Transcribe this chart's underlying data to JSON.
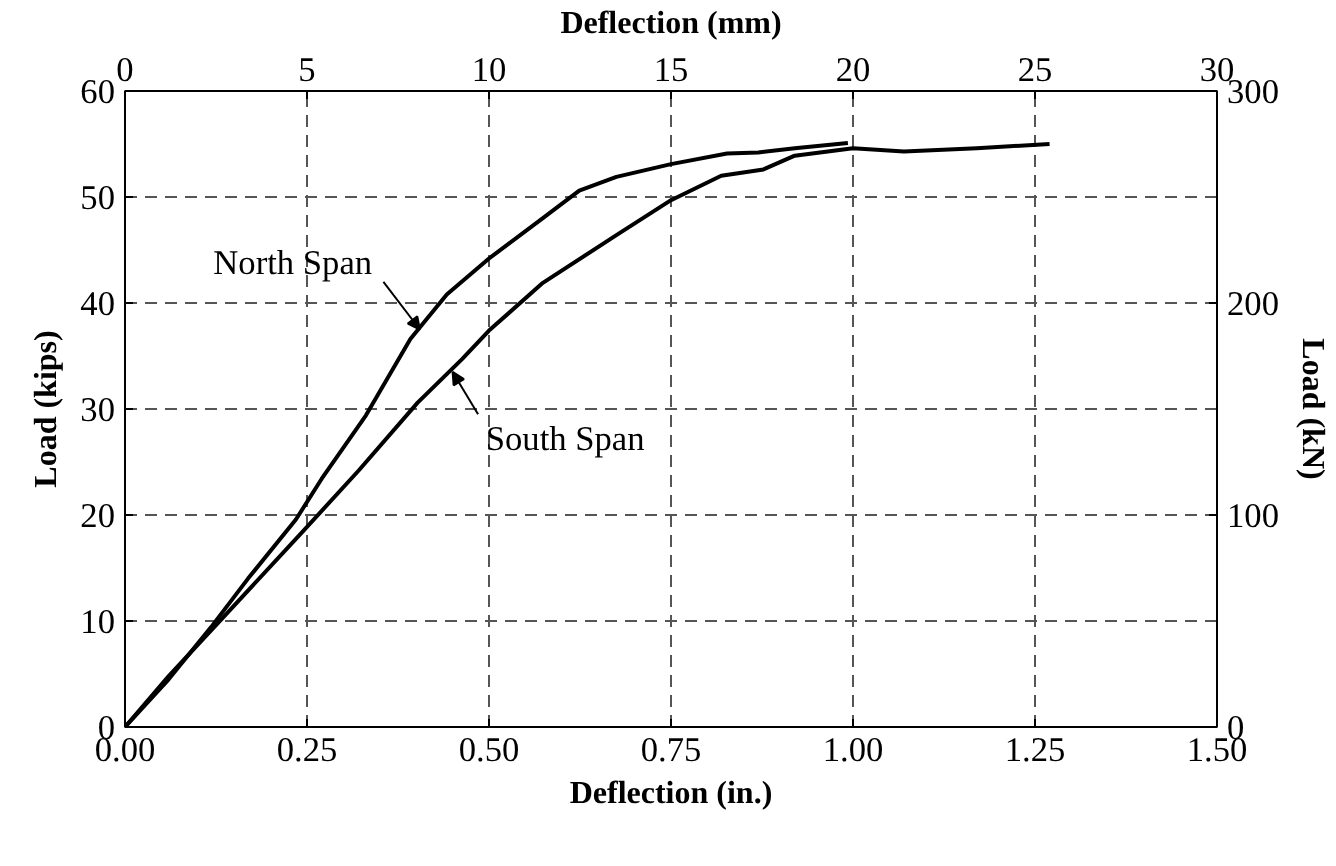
{
  "chart_data": {
    "type": "line",
    "xlabel": "Deflection (in.)",
    "ylabel": "Load (kips)",
    "x2label": "Deflection (mm)",
    "y2label": "Load (kN)",
    "xlim": [
      0,
      1.5
    ],
    "xticks": [
      {
        "value": 0,
        "label": "0.00"
      },
      {
        "value": 0.25,
        "label": "0.25"
      },
      {
        "value": 0.5,
        "label": "0.50"
      },
      {
        "value": 0.75,
        "label": "0.75"
      },
      {
        "value": 1,
        "label": "1.00"
      },
      {
        "value": 1.25,
        "label": "1.25"
      },
      {
        "value": 1.5,
        "label": "1.50"
      }
    ],
    "ylim": [
      0,
      60
    ],
    "yticks": [
      0,
      10,
      20,
      30,
      40,
      50,
      60
    ],
    "x2lim": [
      0,
      30
    ],
    "x2ticks": [
      0,
      5,
      10,
      15,
      20,
      25,
      30
    ],
    "y2lim": [
      0,
      300
    ],
    "y2ticks": [
      0,
      100,
      200,
      300
    ],
    "grid": true,
    "marker": "none",
    "line_style": "solid",
    "series": [
      {
        "color": "#000000",
        "x": [
          0,
          0.06,
          0.118,
          0.169,
          0.235,
          0.27,
          0.331,
          0.392,
          0.442,
          0.5,
          0.574,
          0.624,
          0.675,
          0.75,
          0.827,
          0.87,
          0.92,
          0.993
        ],
        "values": [
          0,
          4.5,
          9.4,
          14,
          19.6,
          23.4,
          29.4,
          36.6,
          40.8,
          44.2,
          48,
          50.6,
          51.9,
          53.1,
          54.1,
          54.2,
          54.6,
          55.1
        ]
      },
      {
        "color": "#000000",
        "x": [
          0,
          0.06,
          0.118,
          0.245,
          0.321,
          0.402,
          0.463,
          0.5,
          0.574,
          0.675,
          0.75,
          0.819,
          0.877,
          0.92,
          1.0,
          1.07,
          1.17,
          1.27
        ],
        "values": [
          0,
          4.8,
          9.1,
          18.5,
          24.2,
          30.6,
          34.7,
          37.4,
          41.9,
          46.4,
          49.7,
          52,
          52.6,
          53.9,
          54.6,
          54.3,
          54.6,
          55
        ]
      }
    ],
    "annotations": [
      {
        "text": "North Span",
        "x": 0.405,
        "y": 37.5
      },
      {
        "text": "South Span",
        "x": 0.45,
        "y": 33.5
      }
    ]
  }
}
